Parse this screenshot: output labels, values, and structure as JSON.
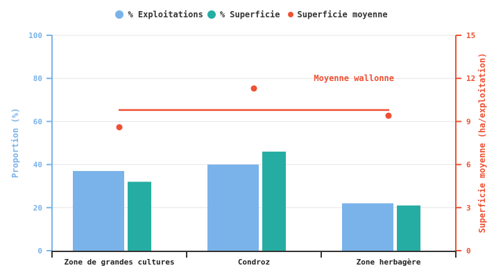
{
  "chart_data": {
    "type": "bar",
    "title": "",
    "categories": [
      "Zone de grandes cultures",
      "Condroz",
      "Zone herbagère"
    ],
    "series": [
      {
        "name": "% Exploitations",
        "axis": "left",
        "kind": "bar",
        "color": "#7ab3ea",
        "values": [
          37,
          40,
          22
        ]
      },
      {
        "name": "% Superficie",
        "axis": "left",
        "kind": "bar",
        "color": "#26ada3",
        "values": [
          32,
          46,
          21
        ]
      },
      {
        "name": "Superficie moyenne",
        "axis": "right",
        "kind": "scatter",
        "color": "#ee5133",
        "values": [
          8.6,
          11.3,
          9.4
        ]
      }
    ],
    "reference_line": {
      "label": "Moyenne wallonne",
      "value": 9.8,
      "axis": "right",
      "color": "#ee5133"
    },
    "ylabel": "Proportion (%)",
    "ylim": [
      0,
      100
    ],
    "yticks": [
      0,
      20,
      40,
      60,
      80,
      100
    ],
    "y2label": "Superficie moyenne (ha/exploitation)",
    "y2lim": [
      0,
      15
    ],
    "y2ticks": [
      0,
      3,
      6,
      9,
      12,
      15
    ],
    "xlabel": "",
    "grid": true,
    "legend_position": "top"
  },
  "legend": [
    {
      "label": "% Exploitations",
      "color": "#7ab3ea",
      "size": 12
    },
    {
      "label": "% Superficie",
      "color": "#26ada3",
      "size": 12
    },
    {
      "label": "Superficie moyenne",
      "color": "#ee5133",
      "size": 8
    }
  ],
  "colors": {
    "left_axis": "#7ab3ea",
    "right_axis": "#ee5133",
    "x_axis": "#333333",
    "grid": "#e6e6e6"
  }
}
